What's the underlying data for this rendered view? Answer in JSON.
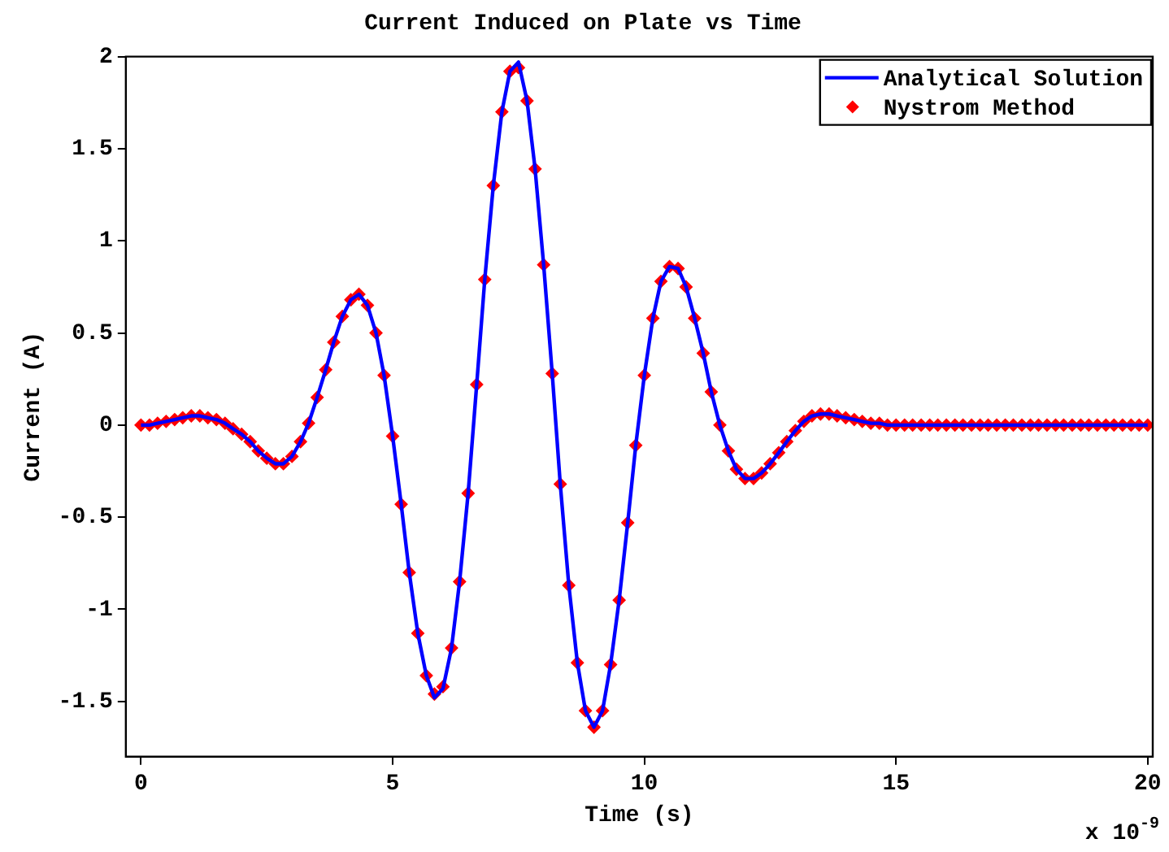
{
  "chart_data": {
    "type": "line",
    "title": "Current Induced on Plate vs Time",
    "xlabel": "Time (s)",
    "ylabel": "Current (A)",
    "annotations": [
      "x 10$^{-9}$"
    ],
    "x": [
      0,
      0.17,
      0.33,
      0.5,
      0.67,
      0.83,
      1,
      1.17,
      1.33,
      1.5,
      1.67,
      1.83,
      2,
      2.17,
      2.33,
      2.5,
      2.67,
      2.83,
      3,
      3.17,
      3.33,
      3.5,
      3.67,
      3.83,
      4,
      4.17,
      4.33,
      4.5,
      4.67,
      4.83,
      5,
      5.17,
      5.33,
      5.5,
      5.67,
      5.83,
      6,
      6.17,
      6.33,
      6.5,
      6.67,
      6.83,
      7,
      7.17,
      7.33,
      7.5,
      7.67,
      7.83,
      8,
      8.17,
      8.33,
      8.5,
      8.67,
      8.83,
      9,
      9.17,
      9.33,
      9.5,
      9.67,
      9.83,
      10,
      10.17,
      10.33,
      10.5,
      10.67,
      10.83,
      11,
      11.17,
      11.33,
      11.5,
      11.67,
      11.83,
      12,
      12.17,
      12.33,
      12.5,
      12.67,
      12.83,
      13,
      13.17,
      13.33,
      13.5,
      13.67,
      13.83,
      14,
      14.17,
      14.33,
      14.5,
      14.67,
      14.83,
      15,
      15.17,
      15.33,
      15.5,
      15.67,
      15.83,
      16,
      16.17,
      16.33,
      16.5,
      16.67,
      16.83,
      17,
      17.17,
      17.33,
      17.5,
      17.67,
      17.83,
      18,
      18.17,
      18.33,
      18.5,
      18.67,
      18.83,
      19,
      19.17,
      19.33,
      19.5,
      19.67,
      19.83,
      20
    ],
    "series": [
      {
        "name": "Analytical Solution",
        "type": "line",
        "color": "#0000ff",
        "marker": "none",
        "values": [
          0,
          0,
          0.01,
          0.02,
          0.03,
          0.04,
          0.05,
          0.05,
          0.04,
          0.03,
          0.01,
          -0.02,
          -0.05,
          -0.09,
          -0.14,
          -0.18,
          -0.21,
          -0.21,
          -0.17,
          -0.09,
          0.01,
          0.15,
          0.3,
          0.45,
          0.59,
          0.68,
          0.71,
          0.65,
          0.5,
          0.27,
          -0.06,
          -0.43,
          -0.8,
          -1.13,
          -1.36,
          -1.48,
          -1.43,
          -1.21,
          -0.85,
          -0.37,
          0.22,
          0.79,
          1.3,
          1.7,
          1.92,
          1.97,
          1.76,
          1.39,
          0.87,
          0.28,
          -0.32,
          -0.87,
          -1.29,
          -1.55,
          -1.64,
          -1.55,
          -1.3,
          -0.95,
          -0.53,
          -0.11,
          0.27,
          0.58,
          0.78,
          0.86,
          0.85,
          0.75,
          0.58,
          0.39,
          0.18,
          0,
          -0.14,
          -0.24,
          -0.29,
          -0.29,
          -0.26,
          -0.21,
          -0.15,
          -0.09,
          -0.03,
          0.02,
          0.05,
          0.06,
          0.06,
          0.05,
          0.04,
          0.03,
          0.02,
          0.01,
          0.01,
          0,
          0,
          0,
          0,
          0,
          0,
          0,
          0,
          0,
          0,
          0,
          0,
          0,
          0,
          0,
          0,
          0,
          0,
          0,
          0,
          0,
          0,
          0,
          0,
          0,
          0,
          0,
          0,
          0,
          0,
          0,
          0
        ]
      },
      {
        "name": "Nystrom Method",
        "type": "scatter",
        "color": "#ff0000",
        "marker": "diamond",
        "values": [
          0,
          0,
          0.01,
          0.02,
          0.03,
          0.04,
          0.05,
          0.05,
          0.04,
          0.03,
          0.01,
          -0.02,
          -0.05,
          -0.09,
          -0.14,
          -0.18,
          -0.21,
          -0.21,
          -0.17,
          -0.09,
          0.01,
          0.15,
          0.3,
          0.45,
          0.59,
          0.68,
          0.71,
          0.65,
          0.5,
          0.27,
          -0.06,
          -0.43,
          -0.8,
          -1.13,
          -1.36,
          -1.46,
          -1.42,
          -1.21,
          -0.85,
          -0.37,
          0.22,
          0.79,
          1.3,
          1.7,
          1.92,
          1.94,
          1.76,
          1.39,
          0.87,
          0.28,
          -0.32,
          -0.87,
          -1.29,
          -1.55,
          -1.64,
          -1.55,
          -1.3,
          -0.95,
          -0.53,
          -0.11,
          0.27,
          0.58,
          0.78,
          0.86,
          0.85,
          0.75,
          0.58,
          0.39,
          0.18,
          0,
          -0.14,
          -0.24,
          -0.29,
          -0.29,
          -0.26,
          -0.21,
          -0.15,
          -0.09,
          -0.03,
          0.02,
          0.05,
          0.06,
          0.06,
          0.05,
          0.04,
          0.03,
          0.02,
          0.01,
          0.01,
          0,
          0,
          0,
          0,
          0,
          0,
          0,
          0,
          0,
          0,
          0,
          0,
          0,
          0,
          0,
          0,
          0,
          0,
          0,
          0,
          0,
          0,
          0,
          0,
          0,
          0,
          0,
          0,
          0,
          0,
          0,
          0
        ]
      }
    ],
    "xlim": [
      -0.3,
      20.1
    ],
    "xticks": [
      0,
      5,
      10,
      15,
      20
    ],
    "ylim": [
      -1.8,
      2
    ],
    "yticks": [
      -1.5,
      -1,
      -0.5,
      0,
      0.5,
      1,
      1.5,
      2
    ],
    "legend": "top right"
  }
}
